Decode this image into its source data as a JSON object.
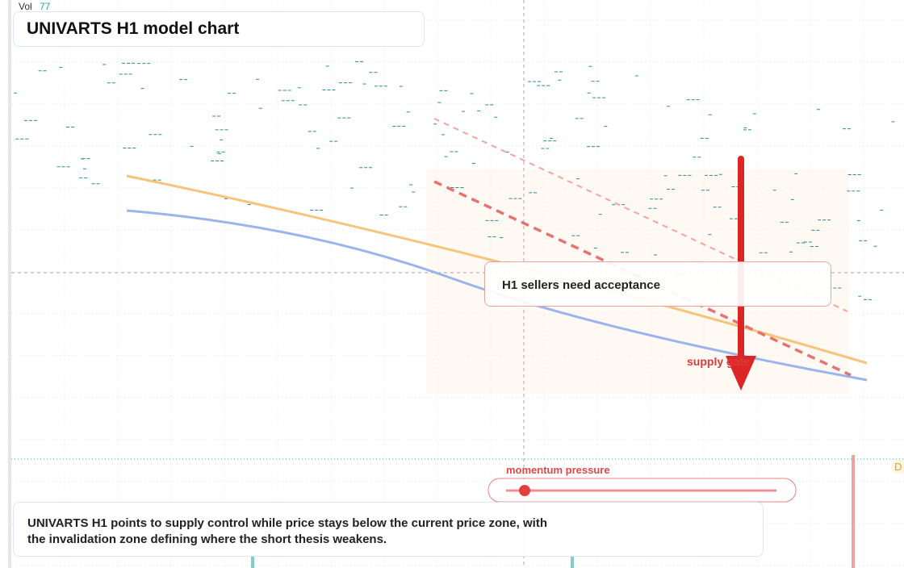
{
  "header": {
    "vol_label": "Vol",
    "vol_value": 77,
    "title": "UNIVARTS H1 model chart"
  },
  "annotations": {
    "callout": "H1 sellers need acceptance",
    "zone_label": "supply gate",
    "indicator_label": "momentum pressure",
    "badge": "D"
  },
  "summary": "UNIVARTS H1 points to supply control while price stays below the current price zone, with the invalidation zone defining where the short thesis weakens."
}
